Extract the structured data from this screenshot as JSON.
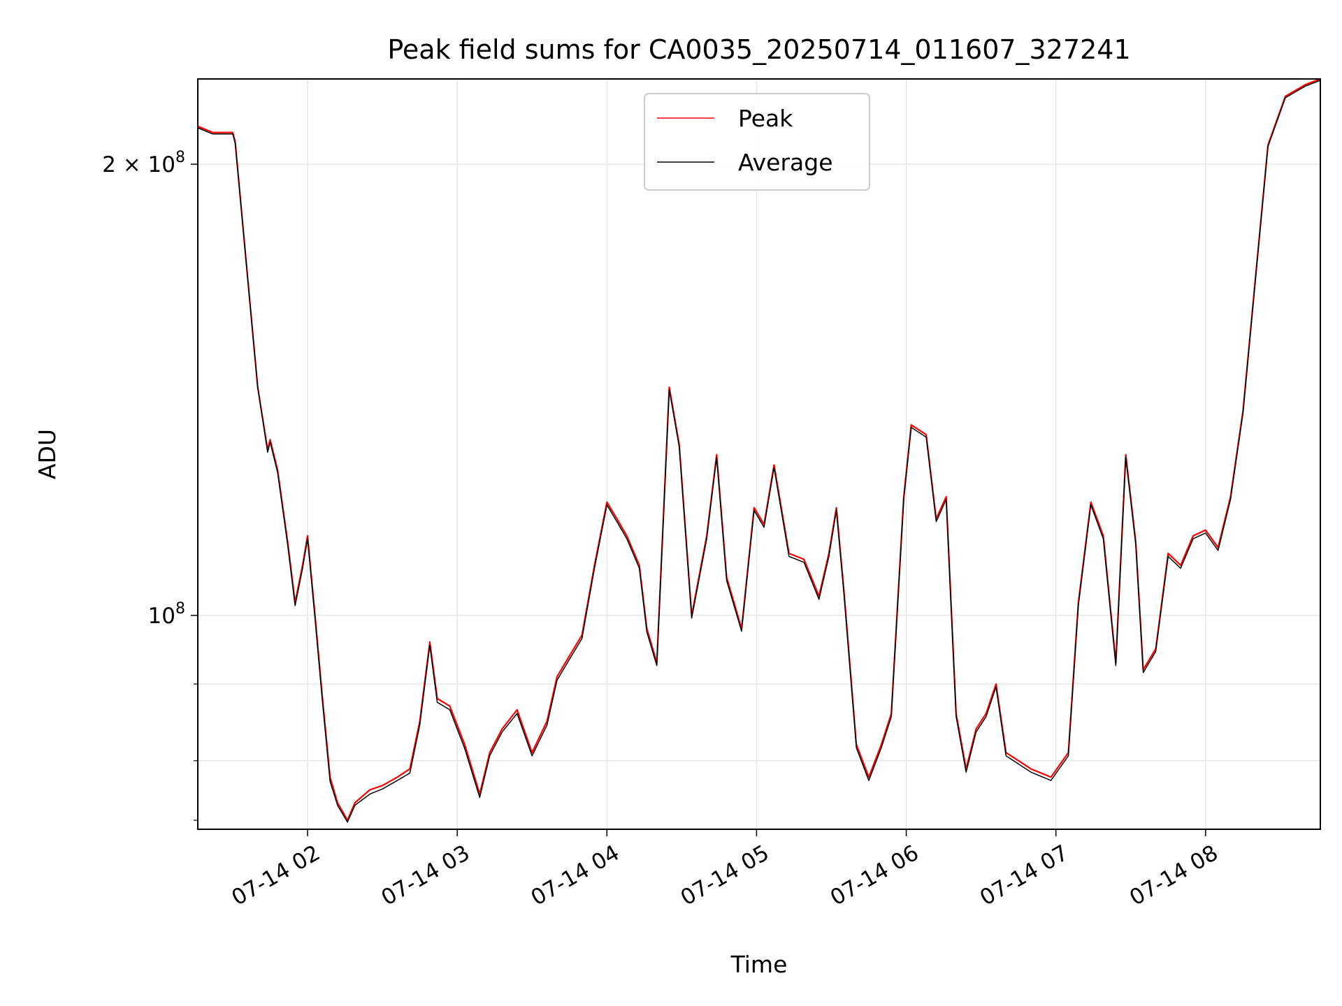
{
  "chart_data": {
    "type": "line",
    "title": "Peak field sums for CA0035_20250714_011607_327241",
    "xlabel": "Time",
    "ylabel": "ADU",
    "yscale": "log",
    "ylim": [
      72000000,
      228000000
    ],
    "xlim": [
      "07-14 01:16",
      "07-14 08:46"
    ],
    "grid": true,
    "legend_position": "top-center",
    "x_ticks": [
      "07-14 02",
      "07-14 03",
      "07-14 04",
      "07-14 05",
      "07-14 06",
      "07-14 07",
      "07-14 08"
    ],
    "y_ticks": [
      {
        "value": 200000000,
        "base": "2 × 10",
        "exp": "8"
      },
      {
        "value": 100000000,
        "base": "10",
        "exp": "8"
      }
    ],
    "series": [
      {
        "name": "Peak",
        "color": "#ff0000",
        "points": [
          [
            "07-14 01:16",
            212000000
          ],
          [
            "07-14 01:22",
            210000000
          ],
          [
            "07-14 01:30",
            210000000
          ],
          [
            "07-14 01:31",
            207000000
          ],
          [
            "07-14 01:35",
            175000000
          ],
          [
            "07-14 01:40",
            142000000
          ],
          [
            "07-14 01:44",
            129000000
          ],
          [
            "07-14 01:45",
            131000000
          ],
          [
            "07-14 01:48",
            125000000
          ],
          [
            "07-14 01:52",
            112000000
          ],
          [
            "07-14 01:55",
            102000000
          ],
          [
            "07-14 01:58",
            108000000
          ],
          [
            "07-14 02:00",
            113000000
          ],
          [
            "07-14 02:03",
            100000000
          ],
          [
            "07-14 02:06",
            88000000
          ],
          [
            "07-14 02:09",
            78000000
          ],
          [
            "07-14 02:12",
            75000000
          ],
          [
            "07-14 02:16",
            73000000
          ],
          [
            "07-14 02:19",
            75000000
          ],
          [
            "07-14 02:25",
            76500000
          ],
          [
            "07-14 02:30",
            77000000
          ],
          [
            "07-14 02:36",
            78000000
          ],
          [
            "07-14 02:41",
            79000000
          ],
          [
            "07-14 02:45",
            85000000
          ],
          [
            "07-14 02:49",
            96000000
          ],
          [
            "07-14 02:52",
            88000000
          ],
          [
            "07-14 02:57",
            87000000
          ],
          [
            "07-14 03:03",
            82000000
          ],
          [
            "07-14 03:09",
            76000000
          ],
          [
            "07-14 03:13",
            81000000
          ],
          [
            "07-14 03:18",
            84000000
          ],
          [
            "07-14 03:24",
            86500000
          ],
          [
            "07-14 03:30",
            81000000
          ],
          [
            "07-14 03:36",
            85000000
          ],
          [
            "07-14 03:40",
            91000000
          ],
          [
            "07-14 03:45",
            94000000
          ],
          [
            "07-14 03:50",
            97000000
          ],
          [
            "07-14 03:55",
            108000000
          ],
          [
            "07-14 04:00",
            119000000
          ],
          [
            "07-14 04:04",
            116000000
          ],
          [
            "07-14 04:08",
            113000000
          ],
          [
            "07-14 04:13",
            108000000
          ],
          [
            "07-14 04:16",
            98000000
          ],
          [
            "07-14 04:20",
            93000000
          ],
          [
            "07-14 04:25",
            142000000
          ],
          [
            "07-14 04:29",
            130000000
          ],
          [
            "07-14 04:34",
            100000000
          ],
          [
            "07-14 04:40",
            113000000
          ],
          [
            "07-14 04:44",
            128000000
          ],
          [
            "07-14 04:48",
            106000000
          ],
          [
            "07-14 04:54",
            98000000
          ],
          [
            "07-14 04:59",
            118000000
          ],
          [
            "07-14 05:03",
            115000000
          ],
          [
            "07-14 05:07",
            126000000
          ],
          [
            "07-14 05:13",
            110000000
          ],
          [
            "07-14 05:19",
            109000000
          ],
          [
            "07-14 05:25",
            103000000
          ],
          [
            "07-14 05:29",
            110000000
          ],
          [
            "07-14 05:32",
            118000000
          ],
          [
            "07-14 05:35",
            104000000
          ],
          [
            "07-14 05:40",
            82000000
          ],
          [
            "07-14 05:45",
            78000000
          ],
          [
            "07-14 05:50",
            82000000
          ],
          [
            "07-14 05:54",
            86000000
          ],
          [
            "07-14 05:59",
            120000000
          ],
          [
            "07-14 06:02",
            134000000
          ],
          [
            "07-14 06:08",
            132000000
          ],
          [
            "07-14 06:12",
            116000000
          ],
          [
            "07-14 06:16",
            120000000
          ],
          [
            "07-14 06:20",
            86000000
          ],
          [
            "07-14 06:24",
            79000000
          ],
          [
            "07-14 06:28",
            84000000
          ],
          [
            "07-14 06:32",
            86000000
          ],
          [
            "07-14 06:36",
            90000000
          ],
          [
            "07-14 06:40",
            81000000
          ],
          [
            "07-14 06:50",
            79000000
          ],
          [
            "07-14 06:58",
            78000000
          ],
          [
            "07-14 07:05",
            81000000
          ],
          [
            "07-14 07:09",
            102000000
          ],
          [
            "07-14 07:14",
            119000000
          ],
          [
            "07-14 07:19",
            113000000
          ],
          [
            "07-14 07:24",
            93000000
          ],
          [
            "07-14 07:28",
            128000000
          ],
          [
            "07-14 07:32",
            112000000
          ],
          [
            "07-14 07:35",
            92000000
          ],
          [
            "07-14 07:40",
            95000000
          ],
          [
            "07-14 07:45",
            110000000
          ],
          [
            "07-14 07:50",
            108000000
          ],
          [
            "07-14 07:55",
            113000000
          ],
          [
            "07-14 08:00",
            114000000
          ],
          [
            "07-14 08:05",
            111000000
          ],
          [
            "07-14 08:10",
            120000000
          ],
          [
            "07-14 08:15",
            137000000
          ],
          [
            "07-14 08:20",
            168000000
          ],
          [
            "07-14 08:25",
            206000000
          ],
          [
            "07-14 08:32",
            222000000
          ],
          [
            "07-14 08:40",
            226000000
          ],
          [
            "07-14 08:46",
            228000000
          ]
        ]
      },
      {
        "name": "Average",
        "color": "#000000",
        "points": [
          [
            "07-14 01:16",
            211500000
          ],
          [
            "07-14 01:22",
            209500000
          ],
          [
            "07-14 01:30",
            209500000
          ],
          [
            "07-14 01:31",
            206500000
          ],
          [
            "07-14 01:35",
            175000000
          ],
          [
            "07-14 01:40",
            142000000
          ],
          [
            "07-14 01:44",
            128500000
          ],
          [
            "07-14 01:45",
            130500000
          ],
          [
            "07-14 01:48",
            124500000
          ],
          [
            "07-14 01:52",
            111500000
          ],
          [
            "07-14 01:55",
            101500000
          ],
          [
            "07-14 01:58",
            107500000
          ],
          [
            "07-14 02:00",
            112500000
          ],
          [
            "07-14 02:03",
            99500000
          ],
          [
            "07-14 02:06",
            87500000
          ],
          [
            "07-14 02:09",
            77500000
          ],
          [
            "07-14 02:12",
            74700000
          ],
          [
            "07-14 02:16",
            72800000
          ],
          [
            "07-14 02:19",
            74700000
          ],
          [
            "07-14 02:25",
            76000000
          ],
          [
            "07-14 02:30",
            76600000
          ],
          [
            "07-14 02:36",
            77600000
          ],
          [
            "07-14 02:41",
            78500000
          ],
          [
            "07-14 02:45",
            84500000
          ],
          [
            "07-14 02:49",
            95500000
          ],
          [
            "07-14 02:52",
            87500000
          ],
          [
            "07-14 02:57",
            86500000
          ],
          [
            "07-14 03:03",
            81500000
          ],
          [
            "07-14 03:09",
            75600000
          ],
          [
            "07-14 03:13",
            80600000
          ],
          [
            "07-14 03:18",
            83600000
          ],
          [
            "07-14 03:24",
            86000000
          ],
          [
            "07-14 03:30",
            80600000
          ],
          [
            "07-14 03:36",
            84500000
          ],
          [
            "07-14 03:40",
            90500000
          ],
          [
            "07-14 03:45",
            93500000
          ],
          [
            "07-14 03:50",
            96500000
          ],
          [
            "07-14 03:55",
            107500000
          ],
          [
            "07-14 04:00",
            118500000
          ],
          [
            "07-14 04:04",
            115500000
          ],
          [
            "07-14 04:08",
            112500000
          ],
          [
            "07-14 04:13",
            107500000
          ],
          [
            "07-14 04:16",
            97500000
          ],
          [
            "07-14 04:20",
            92600000
          ],
          [
            "07-14 04:25",
            141500000
          ],
          [
            "07-14 04:29",
            129500000
          ],
          [
            "07-14 04:34",
            99600000
          ],
          [
            "07-14 04:40",
            112500000
          ],
          [
            "07-14 04:44",
            127500000
          ],
          [
            "07-14 04:48",
            105500000
          ],
          [
            "07-14 04:54",
            97600000
          ],
          [
            "07-14 04:59",
            117500000
          ],
          [
            "07-14 05:03",
            114500000
          ],
          [
            "07-14 05:07",
            125500000
          ],
          [
            "07-14 05:13",
            109500000
          ],
          [
            "07-14 05:19",
            108500000
          ],
          [
            "07-14 05:25",
            102500000
          ],
          [
            "07-14 05:29",
            109500000
          ],
          [
            "07-14 05:32",
            117500000
          ],
          [
            "07-14 05:35",
            103500000
          ],
          [
            "07-14 05:40",
            81600000
          ],
          [
            "07-14 05:45",
            77600000
          ],
          [
            "07-14 05:50",
            81600000
          ],
          [
            "07-14 05:54",
            85600000
          ],
          [
            "07-14 05:59",
            119500000
          ],
          [
            "07-14 06:02",
            133500000
          ],
          [
            "07-14 06:08",
            131500000
          ],
          [
            "07-14 06:12",
            115500000
          ],
          [
            "07-14 06:16",
            119500000
          ],
          [
            "07-14 06:20",
            85600000
          ],
          [
            "07-14 06:24",
            78600000
          ],
          [
            "07-14 06:28",
            83600000
          ],
          [
            "07-14 06:32",
            85600000
          ],
          [
            "07-14 06:36",
            89600000
          ],
          [
            "07-14 06:40",
            80600000
          ],
          [
            "07-14 06:50",
            78600000
          ],
          [
            "07-14 06:58",
            77600000
          ],
          [
            "07-14 07:05",
            80600000
          ],
          [
            "07-14 07:09",
            101500000
          ],
          [
            "07-14 07:14",
            118500000
          ],
          [
            "07-14 07:19",
            112500000
          ],
          [
            "07-14 07:24",
            92600000
          ],
          [
            "07-14 07:28",
            127500000
          ],
          [
            "07-14 07:32",
            111500000
          ],
          [
            "07-14 07:35",
            91600000
          ],
          [
            "07-14 07:40",
            94600000
          ],
          [
            "07-14 07:45",
            109500000
          ],
          [
            "07-14 07:50",
            107500000
          ],
          [
            "07-14 07:55",
            112500000
          ],
          [
            "07-14 08:00",
            113500000
          ],
          [
            "07-14 08:05",
            110500000
          ],
          [
            "07-14 08:10",
            119500000
          ],
          [
            "07-14 08:15",
            136500000
          ],
          [
            "07-14 08:20",
            167500000
          ],
          [
            "07-14 08:25",
            205500000
          ],
          [
            "07-14 08:32",
            221500000
          ],
          [
            "07-14 08:40",
            225500000
          ],
          [
            "07-14 08:46",
            227500000
          ]
        ]
      }
    ]
  }
}
